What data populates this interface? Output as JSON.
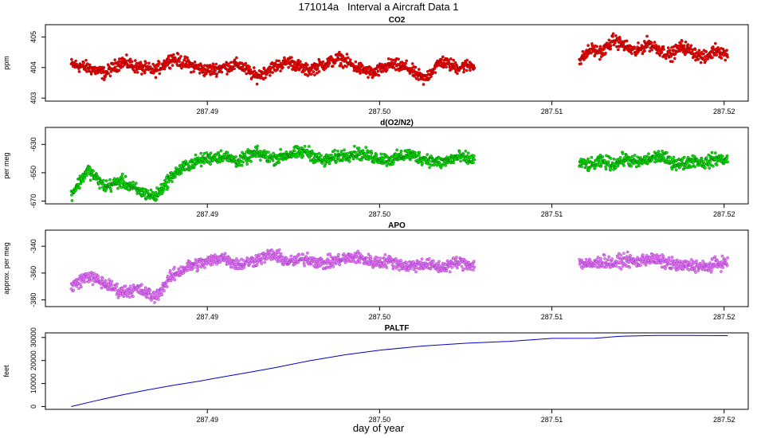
{
  "title": "171014a   Interval a Aircraft Data 1",
  "xlabel": "day of year",
  "chart_data": [
    {
      "type": "scatter",
      "title": "CO2",
      "ylabel": "ppm",
      "color": "#ff0000",
      "edge_color": "#8b0000",
      "yticks": [
        403.0,
        404.0,
        405.0
      ],
      "ylim": [
        402.9,
        405.4
      ],
      "xticks": [
        287.49,
        287.5,
        287.51,
        287.52
      ],
      "xlim": [
        287.4806,
        287.5214
      ],
      "segments": [
        {
          "x_start": 287.4821,
          "x_end": 287.5055,
          "y": [
            404.1,
            404.0,
            403.8,
            404.2,
            404.0,
            403.9,
            404.3,
            404.1,
            403.9,
            404.0,
            404.1,
            403.7,
            404.0,
            404.2,
            403.9,
            404.1,
            404.3,
            404.0,
            403.8,
            404.1,
            404.0,
            403.6,
            404.2,
            404.0,
            404.1
          ]
        },
        {
          "x_start": 287.5116,
          "x_end": 287.5202,
          "y": [
            404.2,
            404.6,
            404.5,
            404.9,
            404.7,
            404.5,
            404.8,
            404.6,
            404.4,
            404.7,
            404.5,
            404.3,
            404.6,
            404.4
          ]
        }
      ]
    },
    {
      "type": "scatter",
      "title": "d(O2/N2)",
      "ylabel": "per meg",
      "color": "#00ee00",
      "edge_color": "#006400",
      "yticks": [
        -670,
        -650,
        -630
      ],
      "ylim": [
        -672,
        -618
      ],
      "xticks": [
        287.49,
        287.5,
        287.51,
        287.52
      ],
      "xlim": [
        287.4806,
        287.5214
      ],
      "segments": [
        {
          "x_start": 287.4821,
          "x_end": 287.5055,
          "y": [
            -665,
            -648,
            -660,
            -656,
            -663,
            -667,
            -652,
            -644,
            -640,
            -638,
            -642,
            -636,
            -640,
            -637,
            -635,
            -642,
            -638,
            -636,
            -639,
            -641,
            -637,
            -640,
            -643,
            -639,
            -641
          ]
        },
        {
          "x_start": 287.5116,
          "x_end": 287.5202,
          "y": [
            -643,
            -645,
            -642,
            -644,
            -640,
            -643,
            -641,
            -638,
            -642,
            -644,
            -641,
            -643,
            -640,
            -641
          ]
        }
      ]
    },
    {
      "type": "scatter",
      "title": "APO",
      "ylabel": "approx. per meg",
      "color": "#ee82ee",
      "edge_color": "#9932cc",
      "yticks": [
        -380,
        -360,
        -340
      ],
      "ylim": [
        -385,
        -328
      ],
      "xticks": [
        287.49,
        287.5,
        287.51,
        287.52
      ],
      "xlim": [
        287.4806,
        287.5214
      ],
      "segments": [
        {
          "x_start": 287.4821,
          "x_end": 287.5055,
          "y": [
            -370,
            -362,
            -368,
            -374,
            -372,
            -378,
            -362,
            -355,
            -352,
            -348,
            -354,
            -350,
            -346,
            -352,
            -349,
            -353,
            -350,
            -348,
            -352,
            -351,
            -355,
            -353,
            -356,
            -352,
            -354
          ]
        },
        {
          "x_start": 287.5116,
          "x_end": 287.5202,
          "y": [
            -352,
            -354,
            -351,
            -353,
            -350,
            -352,
            -349,
            -351,
            -353,
            -355,
            -354,
            -356,
            -353,
            -352
          ]
        }
      ]
    },
    {
      "type": "line",
      "title": "PALTF",
      "ylabel": "feet",
      "color": "#0000cd",
      "yticks": [
        0,
        10000,
        20000,
        30000
      ],
      "ylim": [
        -1200,
        32000
      ],
      "xticks": [
        287.49,
        287.5,
        287.51,
        287.52
      ],
      "xlim": [
        287.4806,
        287.5214
      ],
      "x": [
        287.4821,
        287.4835,
        287.485,
        287.4865,
        287.488,
        287.4895,
        287.491,
        287.4925,
        287.494,
        287.496,
        287.498,
        287.5,
        287.5025,
        287.505,
        287.5075,
        287.51,
        287.5125,
        287.514,
        287.516,
        287.518,
        287.5202
      ],
      "y": [
        0,
        2500,
        5000,
        7200,
        9200,
        11000,
        13000,
        15000,
        17000,
        20000,
        22500,
        24500,
        26300,
        27500,
        28300,
        29600,
        29700,
        30500,
        30900,
        30900,
        30800
      ]
    }
  ]
}
